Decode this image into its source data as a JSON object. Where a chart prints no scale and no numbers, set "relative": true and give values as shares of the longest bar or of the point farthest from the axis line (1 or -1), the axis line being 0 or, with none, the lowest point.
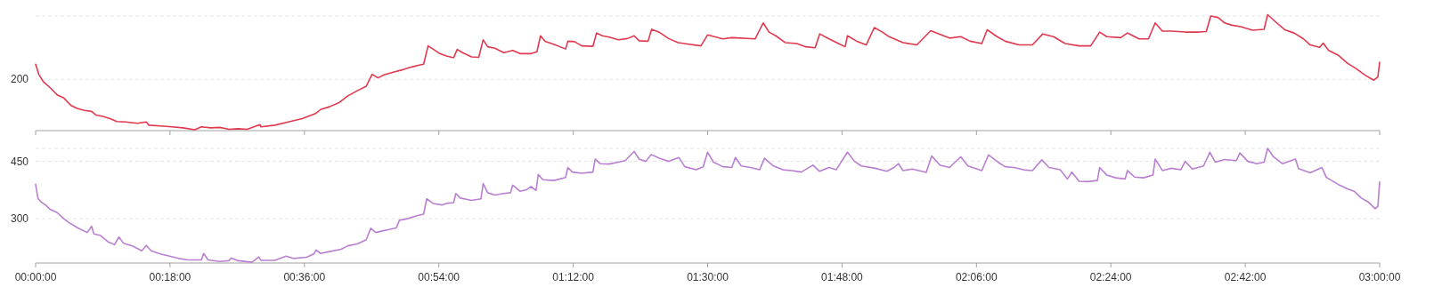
{
  "chart_data": [
    {
      "type": "line",
      "relative": true,
      "tick_labels": "y",
      "xlim": [
        0,
        3
      ],
      "xticks": [
        {
          "value": 0,
          "label": null
        },
        {
          "value": 0.3,
          "label": null
        },
        {
          "value": 0.6,
          "label": null
        },
        {
          "value": 0.9,
          "label": null
        },
        {
          "value": 1.2,
          "label": null
        },
        {
          "value": 1.5,
          "label": null
        },
        {
          "value": 1.8,
          "label": null
        },
        {
          "value": 2.1,
          "label": null
        },
        {
          "value": 2.4,
          "label": null
        },
        {
          "value": 2.7,
          "label": null
        },
        {
          "value": 3,
          "label": null
        }
      ],
      "annotations": [
        "200"
      ],
      "ref_lines": [
        {
          "axis": "y",
          "value": 0.443,
          "label": null,
          "color": "#e4e4e4",
          "line_style": "dashed"
        },
        {
          "axis": "y",
          "value": 0.988,
          "label": null,
          "color": "#e4e4e4",
          "line_style": "dashed"
        }
      ],
      "series": [
        {
          "color": "#e0394f",
          "x": [
            0,
            0.007,
            0.017,
            0.033,
            0.048,
            0.063,
            0.079,
            0.094,
            0.109,
            0.125,
            0.135,
            0.15,
            0.166,
            0.181,
            0.201,
            0.227,
            0.247,
            0.253,
            0.278,
            0.304,
            0.329,
            0.355,
            0.37,
            0.391,
            0.411,
            0.431,
            0.452,
            0.472,
            0.501,
            0.503,
            0.534,
            0.564,
            0.595,
            0.626,
            0.636,
            0.656,
            0.677,
            0.697,
            0.718,
            0.738,
            0.751,
            0.764,
            0.779,
            0.8,
            0.82,
            0.84,
            0.856,
            0.866,
            0.876,
            0.887,
            0.902,
            0.917,
            0.933,
            0.941,
            0.953,
            0.973,
            0.989,
            0.999,
            1.009,
            1.025,
            1.045,
            1.065,
            1.081,
            1.106,
            1.119,
            1.127,
            1.137,
            1.157,
            1.183,
            1.188,
            1.203,
            1.219,
            1.244,
            1.252,
            1.265,
            1.28,
            1.301,
            1.321,
            1.336,
            1.347,
            1.367,
            1.375,
            1.393,
            1.413,
            1.434,
            1.454,
            1.485,
            1.5,
            1.534,
            1.554,
            1.606,
            1.624,
            1.637,
            1.652,
            1.673,
            1.699,
            1.719,
            1.74,
            1.75,
            1.771,
            1.792,
            1.807,
            1.812,
            1.833,
            1.854,
            1.872,
            1.89,
            1.905,
            1.936,
            1.967,
            1.998,
            2.019,
            2.04,
            2.065,
            2.086,
            2.112,
            2.124,
            2.143,
            2.164,
            2.195,
            2.225,
            2.248,
            2.272,
            2.298,
            2.329,
            2.355,
            2.375,
            2.391,
            2.422,
            2.437,
            2.463,
            2.484,
            2.499,
            2.515,
            2.535,
            2.566,
            2.597,
            2.613,
            2.623,
            2.639,
            2.654,
            2.67,
            2.69,
            2.716,
            2.742,
            2.75,
            2.768,
            2.788,
            2.809,
            2.83,
            2.845,
            2.866,
            2.874,
            2.886,
            2.907,
            2.928,
            2.948,
            2.969,
            2.987,
            2.996,
            3.0
          ],
          "values": [
            0.573,
            0.486,
            0.423,
            0.368,
            0.308,
            0.281,
            0.217,
            0.19,
            0.174,
            0.166,
            0.134,
            0.123,
            0.103,
            0.079,
            0.075,
            0.063,
            0.075,
            0.047,
            0.04,
            0.032,
            0.024,
            0.008,
            0.032,
            0.024,
            0.028,
            0.012,
            0.016,
            0.012,
            0.051,
            0.032,
            0.047,
            0.075,
            0.103,
            0.15,
            0.182,
            0.206,
            0.241,
            0.3,
            0.344,
            0.383,
            0.486,
            0.455,
            0.482,
            0.506,
            0.526,
            0.549,
            0.565,
            0.573,
            0.731,
            0.704,
            0.664,
            0.644,
            0.628,
            0.7,
            0.672,
            0.636,
            0.632,
            0.783,
            0.723,
            0.711,
            0.672,
            0.692,
            0.664,
            0.664,
            0.68,
            0.818,
            0.771,
            0.743,
            0.704,
            0.771,
            0.767,
            0.731,
            0.727,
            0.842,
            0.818,
            0.806,
            0.783,
            0.794,
            0.818,
            0.775,
            0.771,
            0.874,
            0.846,
            0.794,
            0.759,
            0.747,
            0.731,
            0.826,
            0.791,
            0.802,
            0.791,
            0.929,
            0.85,
            0.818,
            0.759,
            0.751,
            0.723,
            0.715,
            0.834,
            0.791,
            0.751,
            0.723,
            0.818,
            0.771,
            0.739,
            0.889,
            0.85,
            0.81,
            0.759,
            0.739,
            0.862,
            0.83,
            0.798,
            0.81,
            0.771,
            0.751,
            0.87,
            0.818,
            0.771,
            0.739,
            0.739,
            0.834,
            0.81,
            0.751,
            0.731,
            0.731,
            0.85,
            0.81,
            0.802,
            0.842,
            0.791,
            0.791,
            0.929,
            0.858,
            0.858,
            0.85,
            0.85,
            0.854,
            0.988,
            0.976,
            0.929,
            0.909,
            0.897,
            0.866,
            0.874,
            1,
            0.937,
            0.87,
            0.842,
            0.791,
            0.739,
            0.719,
            0.755,
            0.692,
            0.652,
            0.581,
            0.534,
            0.474,
            0.435,
            0.462,
            0.589
          ]
        }
      ]
    },
    {
      "type": "line",
      "xlim": [
        0,
        3
      ],
      "xticks": [
        {
          "value": 0,
          "label": "00:00:00"
        },
        {
          "value": 0.3,
          "label": "00:18:00"
        },
        {
          "value": 0.6,
          "label": "00:36:00"
        },
        {
          "value": 0.9,
          "label": "00:54:00"
        },
        {
          "value": 1.2,
          "label": "01:12:00"
        },
        {
          "value": 1.5,
          "label": "01:30:00"
        },
        {
          "value": 1.8,
          "label": "01:48:00"
        },
        {
          "value": 2.1,
          "label": "02:06:00"
        },
        {
          "value": 2.4,
          "label": "02:24:00"
        },
        {
          "value": 2.7,
          "label": "02:42:00"
        },
        {
          "value": 3,
          "label": "03:00:00"
        }
      ],
      "ylim": [
        184,
        484
      ],
      "yticks": [
        300,
        450,
        {
          "value": 484,
          "label": null
        }
      ],
      "grid": "y",
      "series": [
        {
          "color": "#b97fd0",
          "x": [
            0,
            0.005,
            0.012,
            0.022,
            0.033,
            0.048,
            0.063,
            0.074,
            0.094,
            0.115,
            0.125,
            0.13,
            0.145,
            0.161,
            0.176,
            0.186,
            0.196,
            0.217,
            0.237,
            0.247,
            0.258,
            0.278,
            0.299,
            0.319,
            0.339,
            0.37,
            0.375,
            0.385,
            0.411,
            0.431,
            0.437,
            0.452,
            0.483,
            0.498,
            0.503,
            0.534,
            0.559,
            0.575,
            0.605,
            0.621,
            0.626,
            0.636,
            0.656,
            0.682,
            0.697,
            0.718,
            0.738,
            0.748,
            0.759,
            0.789,
            0.805,
            0.812,
            0.83,
            0.851,
            0.866,
            0.873,
            0.887,
            0.907,
            0.917,
            0.933,
            0.938,
            0.948,
            0.973,
            0.994,
            0.999,
            1.009,
            1.025,
            1.045,
            1.06,
            1.065,
            1.081,
            1.096,
            1.106,
            1.117,
            1.122,
            1.132,
            1.157,
            1.183,
            1.188,
            1.198,
            1.219,
            1.244,
            1.249,
            1.26,
            1.28,
            1.301,
            1.316,
            1.336,
            1.347,
            1.362,
            1.374,
            1.393,
            1.413,
            1.436,
            1.449,
            1.474,
            1.49,
            1.5,
            1.513,
            1.534,
            1.554,
            1.562,
            1.575,
            1.596,
            1.616,
            1.627,
            1.647,
            1.668,
            1.688,
            1.709,
            1.735,
            1.75,
            1.771,
            1.787,
            1.812,
            1.828,
            1.843,
            1.874,
            1.9,
            1.916,
            1.926,
            1.936,
            1.957,
            1.988,
            2.0,
            2.019,
            2.04,
            2.065,
            2.081,
            2.112,
            2.127,
            2.148,
            2.164,
            2.184,
            2.205,
            2.225,
            2.246,
            2.262,
            2.287,
            2.303,
            2.313,
            2.329,
            2.349,
            2.37,
            2.375,
            2.391,
            2.411,
            2.432,
            2.437,
            2.453,
            2.473,
            2.494,
            2.499,
            2.515,
            2.535,
            2.556,
            2.566,
            2.582,
            2.607,
            2.621,
            2.633,
            2.654,
            2.68,
            2.688,
            2.706,
            2.726,
            2.742,
            2.75,
            2.763,
            2.783,
            2.812,
            2.819,
            2.845,
            2.871,
            2.881,
            2.907,
            2.928,
            2.943,
            2.959,
            2.974,
            2.99,
            2.996,
            3.0
          ],
          "values": [
            390,
            354,
            344,
            336,
            324,
            316,
            300,
            290,
            276,
            264,
            280,
            260,
            256,
            240,
            232,
            252,
            236,
            228,
            216,
            230,
            216,
            208,
            202,
            196,
            192,
            192,
            209,
            192,
            188,
            190,
            197,
            190,
            186,
            200,
            191,
            191,
            202,
            196,
            199,
            208,
            218,
            209,
            214,
            220,
            229,
            234,
            245,
            275,
            264,
            272,
            276,
            296,
            300,
            308,
            312,
            352,
            340,
            336,
            340,
            342,
            366,
            354,
            348,
            352,
            392,
            368,
            362,
            366,
            368,
            388,
            372,
            376,
            384,
            374,
            416,
            402,
            400,
            408,
            434,
            422,
            419,
            422,
            456,
            444,
            443,
            448,
            452,
            476,
            456,
            450,
            468,
            458,
            450,
            460,
            436,
            428,
            436,
            474,
            448,
            436,
            434,
            460,
            438,
            434,
            428,
            458,
            438,
            428,
            426,
            422,
            440,
            424,
            434,
            428,
            474,
            450,
            438,
            432,
            424,
            434,
            444,
            426,
            430,
            421,
            464,
            440,
            434,
            462,
            438,
            426,
            467,
            448,
            436,
            434,
            428,
            426,
            454,
            434,
            428,
            404,
            422,
            398,
            397,
            400,
            434,
            414,
            407,
            404,
            426,
            409,
            407,
            414,
            456,
            426,
            432,
            428,
            450,
            430,
            438,
            474,
            448,
            455,
            452,
            472,
            450,
            444,
            448,
            484,
            462,
            444,
            456,
            431,
            420,
            434,
            408,
            390,
            378,
            372,
            354,
            344,
            326,
            332,
            396
          ]
        }
      ]
    }
  ]
}
